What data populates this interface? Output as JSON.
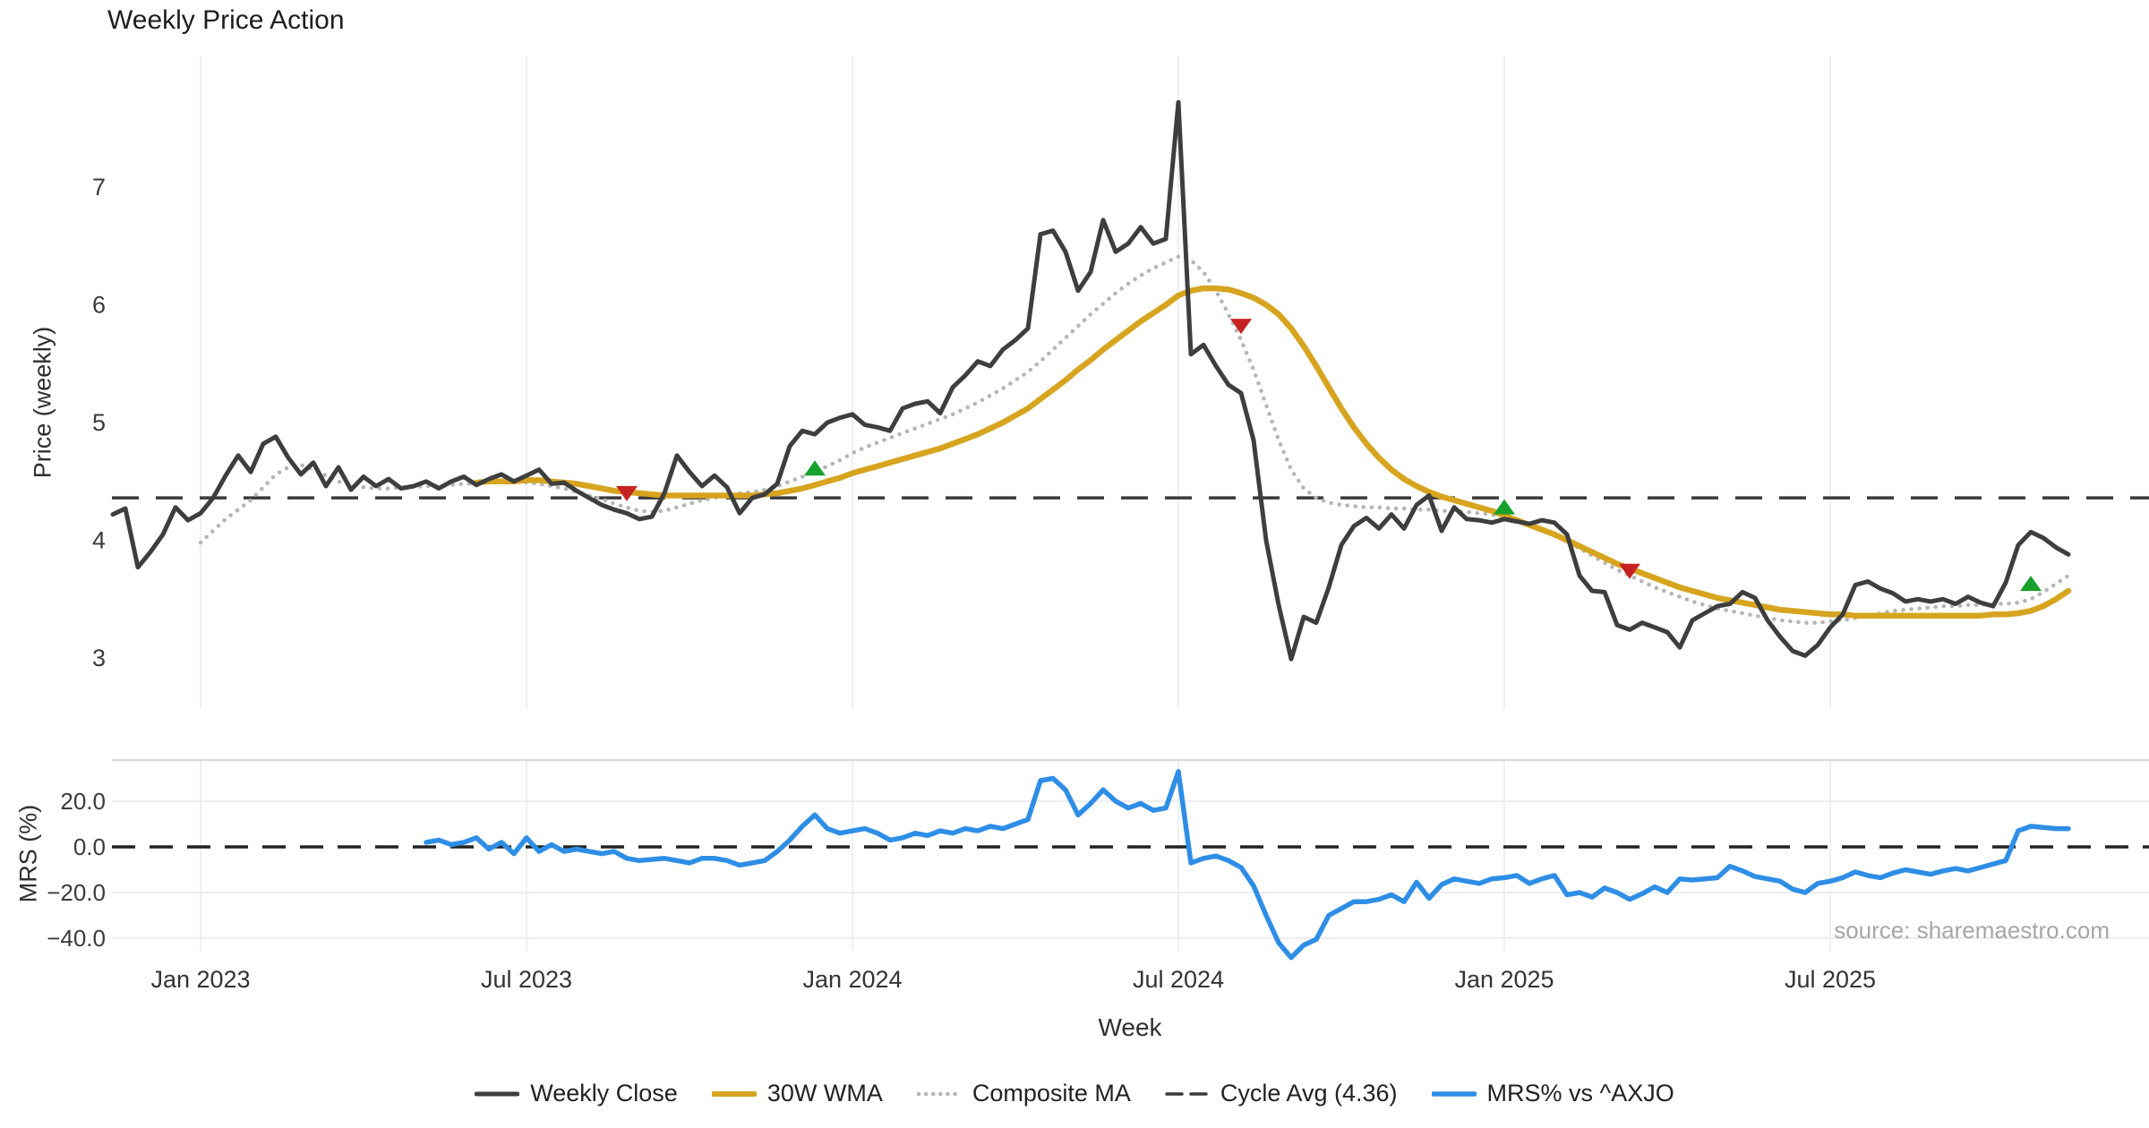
{
  "title": "Weekly Price Action",
  "source_note": "source: sharemaestro.com",
  "x_axis_label": "Week",
  "price_axis_label": "Price (weekly)",
  "mrs_axis_label": "MRS (%)",
  "colors": {
    "background": "#ffffff",
    "close": "#3e3e3e",
    "wma": "#d7a41f",
    "composite": "#b5b5b5",
    "cycle": "#3a3a3a",
    "mrs": "#2e8ee6",
    "buy": "#18a12c",
    "sell": "#c62222",
    "grid": "#eef0f3",
    "panel_border": "#d9dbe0",
    "tick_text": "#3b3b3b",
    "zero_dash": "#222222"
  },
  "chart_data": {
    "type": "line",
    "x_axis": {
      "label": "Week",
      "start_date": "2022-11-14",
      "frequency": "weekly",
      "n_weeks": 157,
      "ticks": [
        {
          "week": 7,
          "label": "Jan 2023"
        },
        {
          "week": 33,
          "label": "Jul 2023"
        },
        {
          "week": 59,
          "label": "Jan 2024"
        },
        {
          "week": 85,
          "label": "Jul 2024"
        },
        {
          "week": 111,
          "label": "Jan 2025"
        },
        {
          "week": 137,
          "label": "Jul 2025"
        }
      ]
    },
    "price_axis": {
      "label": "Price (weekly)",
      "ticks": [
        7,
        6,
        5,
        4,
        3
      ],
      "range": [
        2.85,
        7.9
      ]
    },
    "mrs_axis": {
      "label": "MRS (%)",
      "ticks": [
        20,
        0,
        -20,
        -40
      ],
      "range": [
        -52,
        36
      ]
    },
    "cycle_avg": 4.36,
    "series": [
      {
        "id": "close",
        "name": "Weekly Close",
        "panel": "price",
        "style": "solid",
        "color": "#3e3e3e",
        "width": 5,
        "start_week": 0,
        "values": [
          4.22,
          4.27,
          3.77,
          3.9,
          4.05,
          4.28,
          4.17,
          4.23,
          4.36,
          4.55,
          4.72,
          4.58,
          4.82,
          4.88,
          4.7,
          4.56,
          4.66,
          4.46,
          4.62,
          4.43,
          4.54,
          4.46,
          4.52,
          4.44,
          4.46,
          4.5,
          4.44,
          4.5,
          4.54,
          4.47,
          4.52,
          4.56,
          4.5,
          4.55,
          4.6,
          4.48,
          4.49,
          4.42,
          4.36,
          4.3,
          4.26,
          4.23,
          4.18,
          4.2,
          4.4,
          4.72,
          4.58,
          4.46,
          4.55,
          4.45,
          4.23,
          4.36,
          4.39,
          4.48,
          4.8,
          4.93,
          4.9,
          5.0,
          5.04,
          5.07,
          4.98,
          4.96,
          4.93,
          5.12,
          5.16,
          5.18,
          5.08,
          5.3,
          5.4,
          5.52,
          5.48,
          5.62,
          5.7,
          5.8,
          6.6,
          6.63,
          6.45,
          6.12,
          6.28,
          6.72,
          6.45,
          6.52,
          6.66,
          6.52,
          6.56,
          7.72,
          5.58,
          5.66,
          5.48,
          5.32,
          5.25,
          4.85,
          4.0,
          3.45,
          2.99,
          3.35,
          3.3,
          3.6,
          3.96,
          4.12,
          4.19,
          4.1,
          4.22,
          4.1,
          4.3,
          4.38,
          4.08,
          4.28,
          4.18,
          4.17,
          4.15,
          4.18,
          4.16,
          4.14,
          4.17,
          4.15,
          4.05,
          3.7,
          3.57,
          3.56,
          3.28,
          3.24,
          3.3,
          3.26,
          3.22,
          3.09,
          3.32,
          3.38,
          3.44,
          3.46,
          3.56,
          3.51,
          3.32,
          3.18,
          3.06,
          3.02,
          3.11,
          3.26,
          3.37,
          3.62,
          3.65,
          3.59,
          3.55,
          3.48,
          3.5,
          3.48,
          3.5,
          3.46,
          3.52,
          3.47,
          3.44,
          3.64,
          3.96,
          4.07,
          4.02,
          3.94,
          3.88
        ]
      },
      {
        "id": "wma",
        "name": "30W WMA",
        "panel": "price",
        "style": "solid",
        "color": "#d7a41f",
        "width": 6.5,
        "start_week": 29,
        "values": [
          4.49,
          4.5,
          4.5,
          4.5,
          4.51,
          4.51,
          4.5,
          4.49,
          4.48,
          4.46,
          4.44,
          4.42,
          4.41,
          4.4,
          4.39,
          4.38,
          4.38,
          4.38,
          4.38,
          4.38,
          4.38,
          4.38,
          4.38,
          4.39,
          4.4,
          4.42,
          4.44,
          4.47,
          4.5,
          4.53,
          4.57,
          4.6,
          4.63,
          4.66,
          4.69,
          4.72,
          4.75,
          4.78,
          4.82,
          4.86,
          4.9,
          4.95,
          5.0,
          5.06,
          5.12,
          5.2,
          5.28,
          5.36,
          5.45,
          5.53,
          5.62,
          5.7,
          5.78,
          5.86,
          5.93,
          6.0,
          6.08,
          6.12,
          6.14,
          6.14,
          6.13,
          6.1,
          6.06,
          6.0,
          5.92,
          5.8,
          5.65,
          5.48,
          5.3,
          5.12,
          4.96,
          4.82,
          4.7,
          4.6,
          4.52,
          4.46,
          4.41,
          4.37,
          4.34,
          4.31,
          4.28,
          4.25,
          4.21,
          4.17,
          4.13,
          4.09,
          4.05,
          4.0,
          3.95,
          3.9,
          3.85,
          3.8,
          3.76,
          3.72,
          3.68,
          3.64,
          3.6,
          3.57,
          3.54,
          3.51,
          3.49,
          3.47,
          3.45,
          3.43,
          3.41,
          3.4,
          3.39,
          3.38,
          3.37,
          3.37,
          3.36,
          3.36,
          3.36,
          3.36,
          3.36,
          3.36,
          3.36,
          3.36,
          3.36,
          3.36,
          3.36,
          3.37,
          3.37,
          3.38,
          3.4,
          3.44,
          3.5,
          3.57
        ]
      },
      {
        "id": "composite",
        "name": "Composite MA",
        "panel": "price",
        "style": "dotted",
        "color": "#b5b5b5",
        "width": 4.5,
        "start_week": 7,
        "values": [
          3.98,
          4.08,
          4.18,
          4.26,
          4.34,
          4.45,
          4.56,
          4.62,
          4.64,
          4.6,
          4.55,
          4.5,
          4.47,
          4.45,
          4.44,
          4.44,
          4.45,
          4.45,
          4.46,
          4.46,
          4.47,
          4.48,
          4.48,
          4.49,
          4.5,
          4.5,
          4.49,
          4.48,
          4.46,
          4.44,
          4.41,
          4.38,
          4.35,
          4.31,
          4.28,
          4.25,
          4.24,
          4.25,
          4.28,
          4.31,
          4.34,
          4.36,
          4.38,
          4.4,
          4.41,
          4.43,
          4.46,
          4.5,
          4.54,
          4.58,
          4.63,
          4.68,
          4.74,
          4.79,
          4.83,
          4.87,
          4.91,
          4.95,
          4.99,
          5.03,
          5.07,
          5.12,
          5.17,
          5.23,
          5.29,
          5.36,
          5.43,
          5.52,
          5.62,
          5.72,
          5.82,
          5.92,
          6.01,
          6.1,
          6.18,
          6.25,
          6.31,
          6.36,
          6.41,
          6.38,
          6.28,
          6.12,
          5.92,
          5.7,
          5.45,
          5.15,
          4.85,
          4.6,
          4.44,
          4.36,
          4.32,
          4.3,
          4.29,
          4.28,
          4.28,
          4.27,
          4.27,
          4.26,
          4.26,
          4.25,
          4.25,
          4.24,
          4.23,
          4.22,
          4.2,
          4.17,
          4.13,
          4.09,
          4.04,
          3.99,
          3.93,
          3.87,
          3.81,
          3.75,
          3.7,
          3.65,
          3.6,
          3.56,
          3.52,
          3.48,
          3.45,
          3.42,
          3.4,
          3.38,
          3.36,
          3.34,
          3.32,
          3.31,
          3.3,
          3.3,
          3.31,
          3.32,
          3.34,
          3.36,
          3.38,
          3.4,
          3.41,
          3.42,
          3.43,
          3.44,
          3.44,
          3.45,
          3.45,
          3.46,
          3.46,
          3.47,
          3.5,
          3.56,
          3.63,
          3.7
        ]
      },
      {
        "id": "cycle",
        "name": "Cycle Avg (4.36)",
        "panel": "price",
        "style": "dashed",
        "color": "#3a3a3a",
        "width": 3.5,
        "value": 4.36
      },
      {
        "id": "mrs",
        "name": "MRS% vs ^AXJO",
        "panel": "mrs",
        "style": "solid",
        "color": "#2e8ee6",
        "width": 5.5,
        "start_week": 25,
        "values": [
          2,
          3,
          1,
          2,
          4,
          -1,
          2,
          -3,
          4,
          -2,
          1,
          -2,
          -1,
          -2,
          -3,
          -2,
          -5,
          -6,
          -5.5,
          -5,
          -6,
          -7,
          -5,
          -5,
          -6,
          -8,
          -7,
          -6,
          -2,
          3,
          9,
          14,
          8,
          6,
          7,
          8,
          6,
          3,
          4,
          6,
          5,
          7,
          6,
          8,
          7,
          9,
          8,
          10,
          12,
          29,
          30,
          25,
          14,
          19,
          25,
          20,
          17,
          19,
          16,
          17,
          33,
          -7,
          -5,
          -4,
          -6,
          -9,
          -17,
          -30,
          -42,
          -48.5,
          -43,
          -40.5,
          -30,
          -27,
          -24,
          -24,
          -23,
          -21,
          -24,
          -15.5,
          -22.5,
          -16.5,
          -14,
          -15,
          -16,
          -14,
          -13.5,
          -12.5,
          -16,
          -14,
          -12.5,
          -21,
          -20,
          -22,
          -18,
          -20,
          -23,
          -20.5,
          -17.5,
          -20,
          -14,
          -14.5,
          -14,
          -13.5,
          -8.5,
          -10.5,
          -13,
          -14,
          -15,
          -18.5,
          -20,
          -16,
          -15,
          -13.5,
          -11,
          -12.5,
          -13.5,
          -11.5,
          -10,
          -11,
          -12,
          -10.5,
          -9.5,
          -10.5,
          -9,
          -7.5,
          -6,
          7,
          9,
          8.5,
          8,
          8
        ]
      }
    ],
    "signals": [
      {
        "week": 41,
        "price": 4.4,
        "type": "sell"
      },
      {
        "week": 56,
        "price": 4.61,
        "type": "buy"
      },
      {
        "week": 90,
        "price": 5.82,
        "type": "sell"
      },
      {
        "week": 111,
        "price": 4.28,
        "type": "buy"
      },
      {
        "week": 121,
        "price": 3.74,
        "type": "sell"
      },
      {
        "week": 153,
        "price": 3.63,
        "type": "buy"
      }
    ],
    "legend_order": [
      "close",
      "wma",
      "composite",
      "cycle",
      "mrs"
    ],
    "legend_position": "bottom-center",
    "grid": {
      "vertical": true,
      "price_horizontal": false,
      "mrs_horizontal": true
    }
  }
}
